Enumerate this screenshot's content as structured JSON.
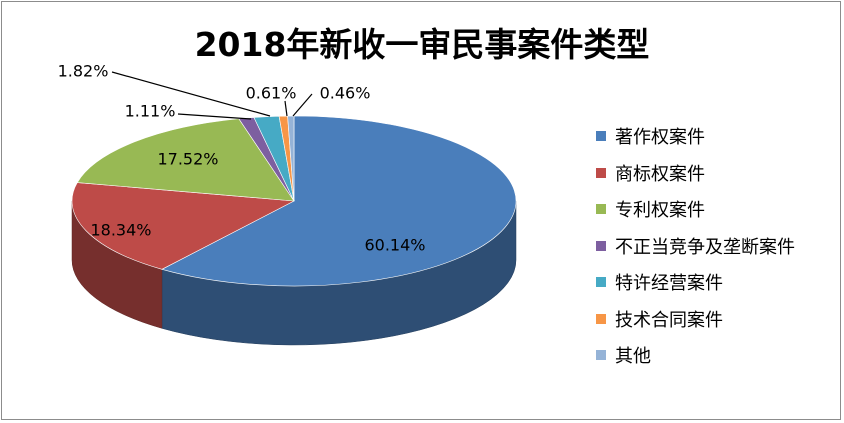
{
  "chart_data": {
    "type": "pie",
    "title": "2018年新收一审民事案件类型",
    "legend_position": "right",
    "slices": [
      {
        "name": "著作权案件",
        "value": 60.14,
        "label": "60.14%",
        "color": "#4a7ebb"
      },
      {
        "name": "商标权案件",
        "value": 18.34,
        "label": "18.34%",
        "color": "#be4b48"
      },
      {
        "name": "专利权案件",
        "value": 17.52,
        "label": "17.52%",
        "color": "#98b954"
      },
      {
        "name": "不正当竞争及垄断案件",
        "value": 1.11,
        "label": "1.11%",
        "color": "#7d5fa0"
      },
      {
        "name": "特许经营案件",
        "value": 1.82,
        "label": "1.82%",
        "color": "#46aac5"
      },
      {
        "name": "技术合同案件",
        "value": 0.61,
        "label": "0.61%",
        "color": "#f79646"
      },
      {
        "name": "其他",
        "value": 0.46,
        "label": "0.46%",
        "color": "#95b3d7"
      }
    ]
  }
}
